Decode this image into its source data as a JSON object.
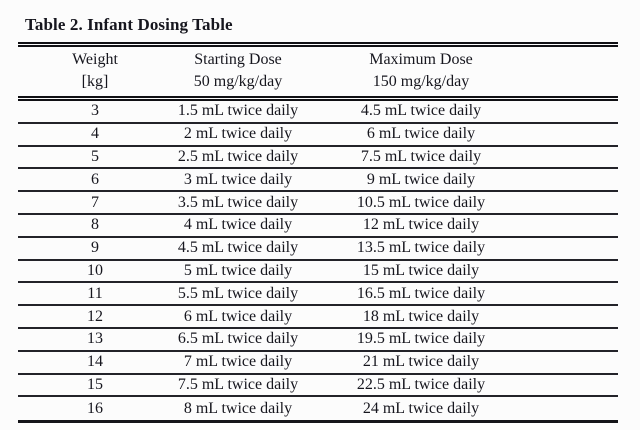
{
  "document": {
    "title": "Table 2. Infant Dosing Table"
  },
  "table": {
    "columns": [
      {
        "line1": "Weight",
        "line2": "[kg]"
      },
      {
        "line1": "Starting Dose",
        "line2": "50 mg/kg/day"
      },
      {
        "line1": "Maximum Dose",
        "line2": "150 mg/kg/day"
      }
    ],
    "rows": [
      {
        "weight": "3",
        "starting": "1.5 mL twice daily",
        "maximum": "4.5 mL twice daily"
      },
      {
        "weight": "4",
        "starting": "2 mL twice daily",
        "maximum": "6 mL twice daily"
      },
      {
        "weight": "5",
        "starting": "2.5 mL twice daily",
        "maximum": "7.5 mL twice daily"
      },
      {
        "weight": "6",
        "starting": "3 mL twice daily",
        "maximum": "9 mL twice daily"
      },
      {
        "weight": "7",
        "starting": "3.5 mL twice daily",
        "maximum": "10.5 mL twice daily"
      },
      {
        "weight": "8",
        "starting": "4 mL twice daily",
        "maximum": "12 mL twice daily"
      },
      {
        "weight": "9",
        "starting": "4.5 mL twice daily",
        "maximum": "13.5 mL twice daily"
      },
      {
        "weight": "10",
        "starting": "5 mL twice daily",
        "maximum": "15 mL twice daily"
      },
      {
        "weight": "11",
        "starting": "5.5 mL twice daily",
        "maximum": "16.5 mL twice daily"
      },
      {
        "weight": "12",
        "starting": "6 mL twice daily",
        "maximum": "18 mL twice daily"
      },
      {
        "weight": "13",
        "starting": "6.5 mL twice daily",
        "maximum": "19.5 mL twice daily"
      },
      {
        "weight": "14",
        "starting": "7 mL twice daily",
        "maximum": "21 mL twice daily"
      },
      {
        "weight": "15",
        "starting": "7.5 mL twice daily",
        "maximum": "22.5 mL twice daily"
      },
      {
        "weight": "16",
        "starting": "8 mL twice daily",
        "maximum": "24 mL twice daily"
      }
    ]
  },
  "colors": {
    "ink": "#16161e",
    "heavy_rule": "#101014",
    "row_separator": "#232329",
    "background": "#fcfcfc"
  }
}
